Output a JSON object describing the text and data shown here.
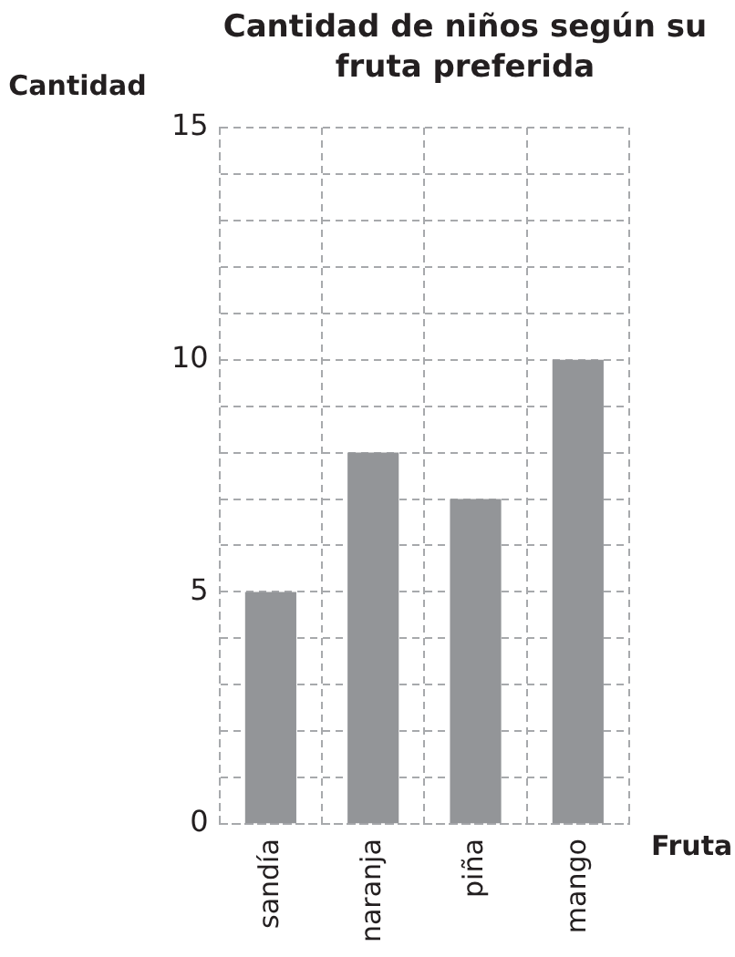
{
  "chart_data": {
    "type": "bar",
    "title": "Cantidad de niños según su  fruta preferida",
    "xlabel": "Fruta",
    "ylabel": "Cantidad",
    "categories": [
      "sandía",
      "naranja",
      "piña",
      "mango"
    ],
    "values": [
      5,
      8,
      7,
      10
    ],
    "color": "#939598",
    "ylim": [
      0,
      15
    ],
    "yticks": [
      0,
      {
        "value": 1,
        "label": null
      },
      {
        "value": 2,
        "label": null
      },
      {
        "value": 3,
        "label": null
      },
      {
        "value": 4,
        "label": null
      },
      5,
      {
        "value": 6,
        "label": null
      },
      {
        "value": 7,
        "label": null
      },
      {
        "value": 8,
        "label": null
      },
      {
        "value": 9,
        "label": null
      },
      10,
      {
        "value": 11,
        "label": null
      },
      {
        "value": 12,
        "label": null
      },
      {
        "value": 13,
        "label": null
      },
      {
        "value": 14,
        "label": null
      },
      15
    ],
    "grid": true,
    "legend": false
  }
}
